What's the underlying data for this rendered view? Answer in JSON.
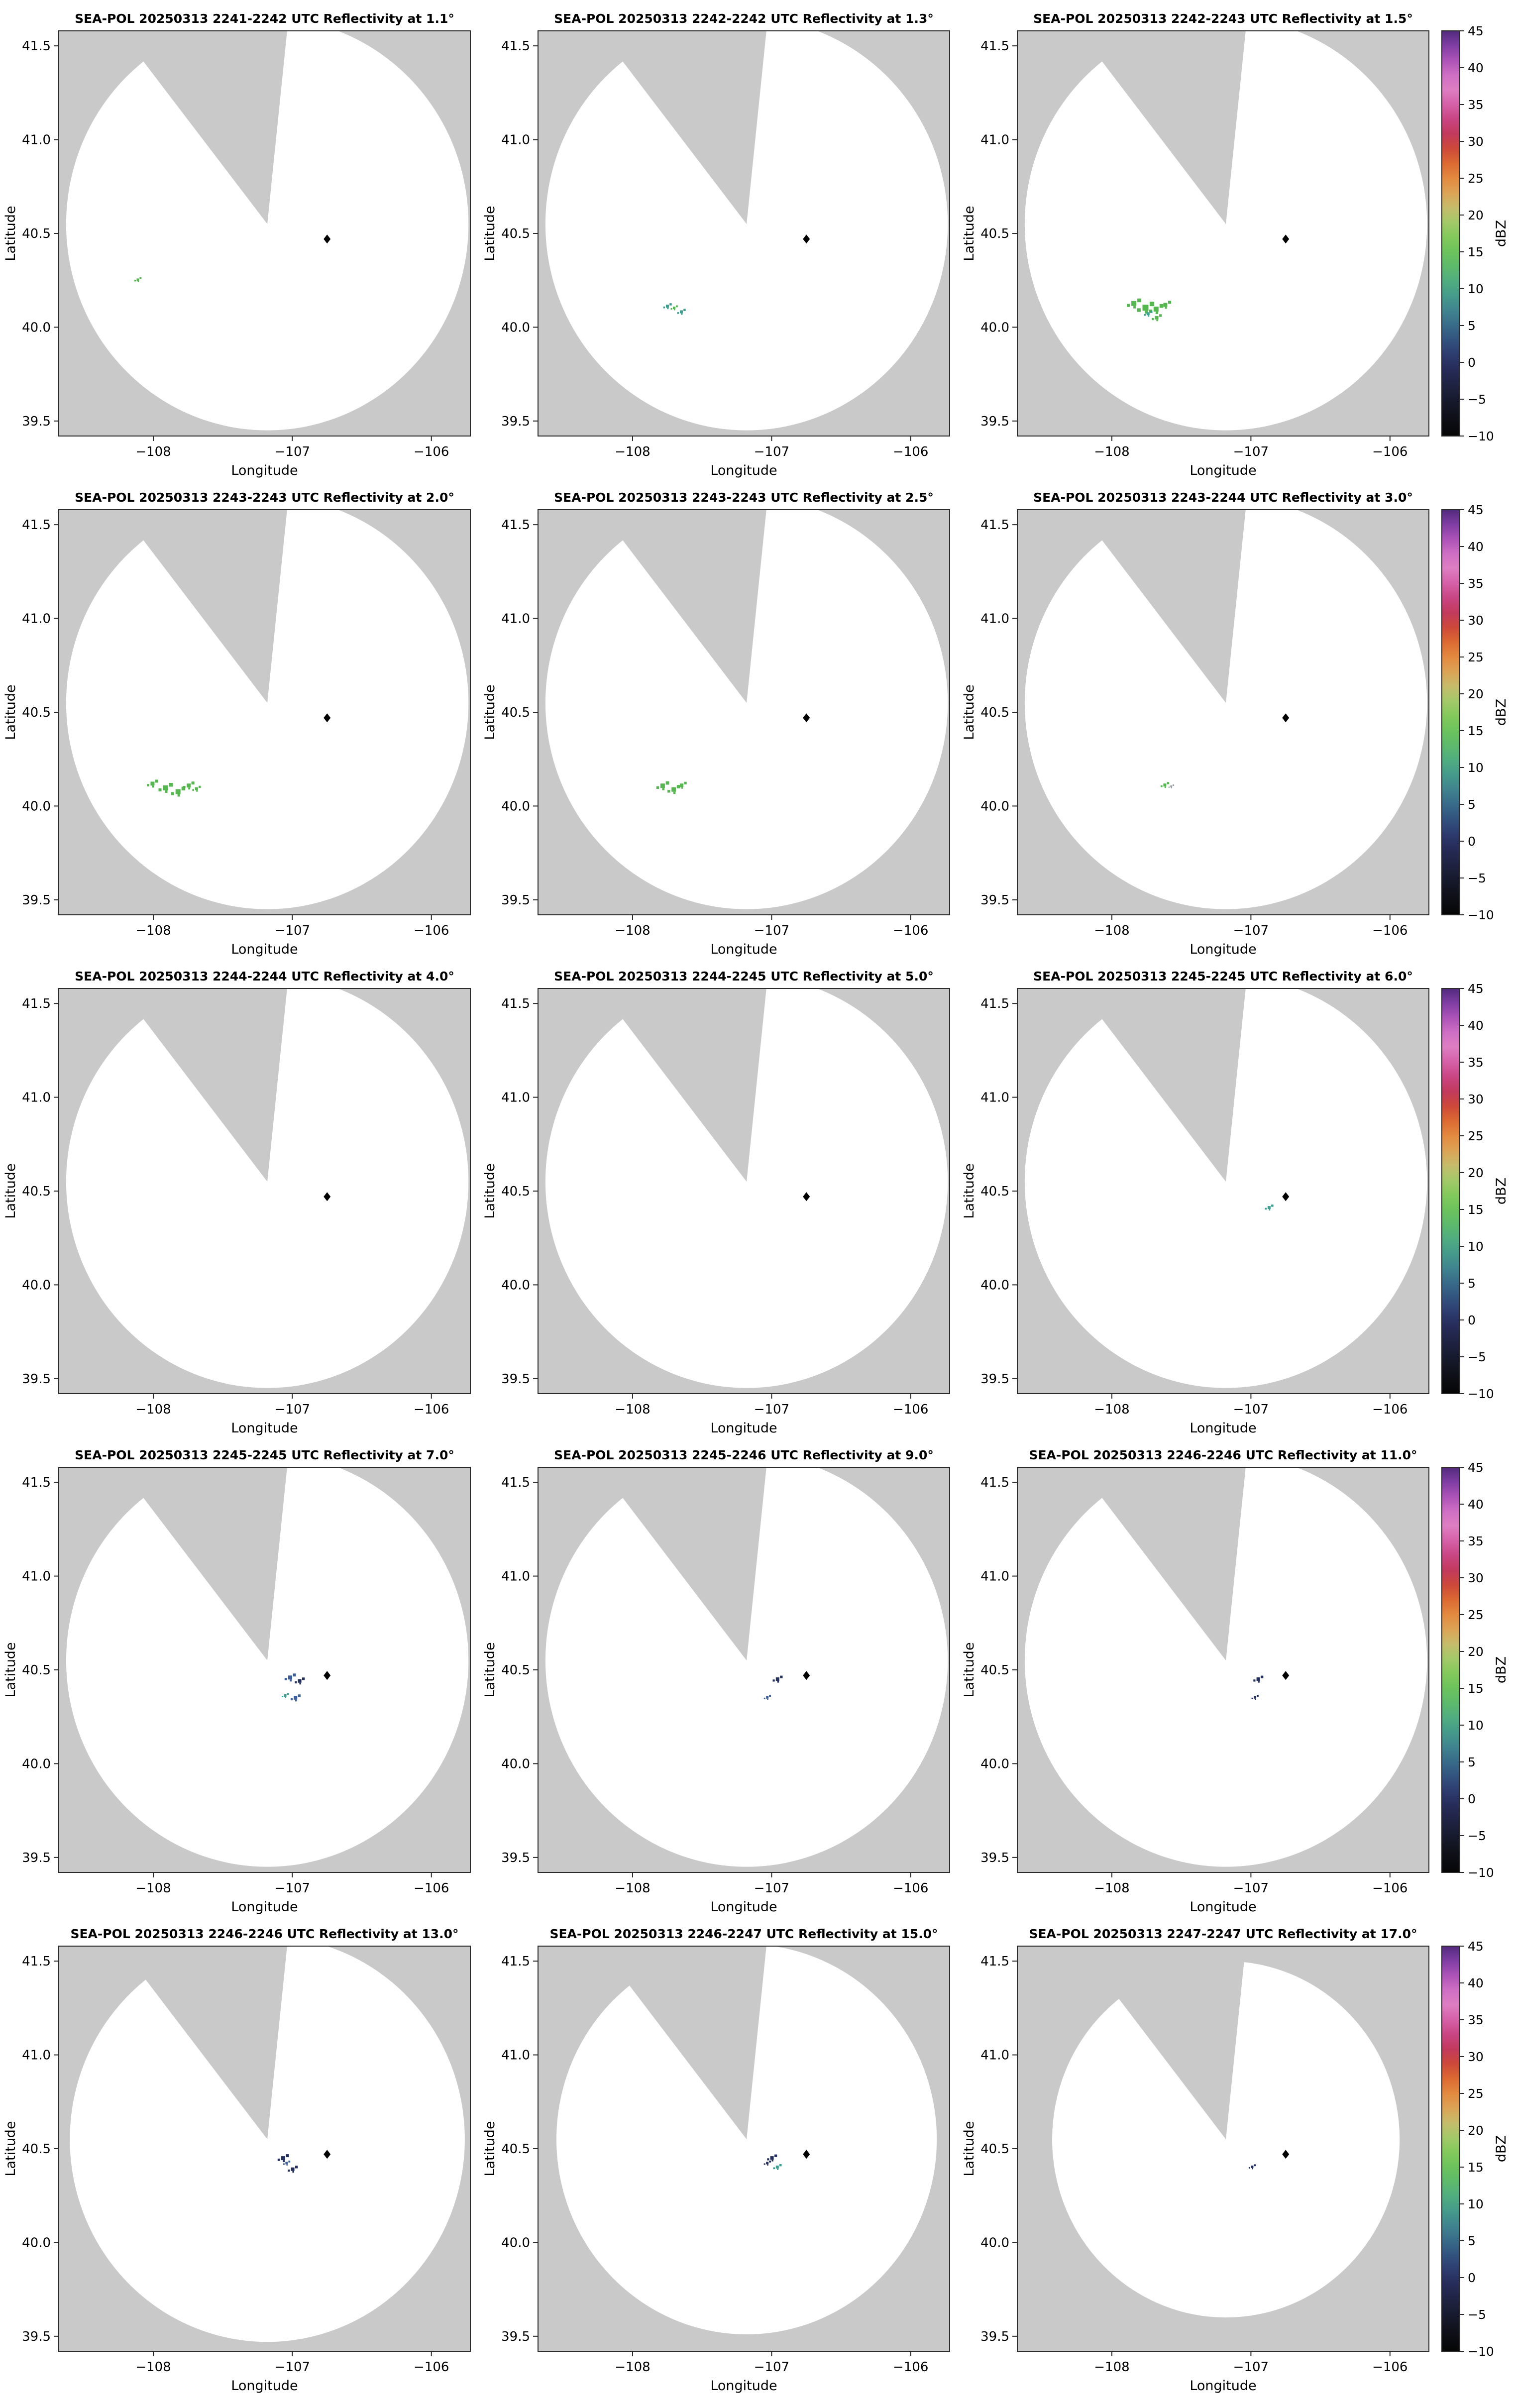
{
  "chart_data": {
    "type": "heatmap",
    "description": "Grid of 15 radar PPI reflectivity maps (5 rows x 3 columns) with one colorbar per row",
    "rows": 5,
    "cols": 3,
    "axes": {
      "xlabel": "Longitude",
      "ylabel": "Latitude",
      "xlim": [
        -108.68,
        -105.72
      ],
      "ylim": [
        39.42,
        41.58
      ],
      "xticks": [
        {
          "v": -108,
          "label": "−108"
        },
        {
          "v": -107,
          "label": "−107"
        },
        {
          "v": -106,
          "label": "−106"
        }
      ],
      "yticks": [
        {
          "v": 39.5,
          "label": "39.5"
        },
        {
          "v": 40.0,
          "label": "40.0"
        },
        {
          "v": 40.5,
          "label": "40.5"
        },
        {
          "v": 41.0,
          "label": "41.0"
        },
        {
          "v": 41.5,
          "label": "41.5"
        }
      ]
    },
    "map": {
      "background_color": "#c9c9c9",
      "coverage_color": "#ffffff",
      "border_color": "#2b2b2b",
      "center": {
        "lon": -107.18,
        "lat": 40.55
      },
      "radar_marker": {
        "lon": -106.75,
        "lat": 40.47,
        "color": "#000000"
      },
      "wedge": {
        "start_az_deg": -38,
        "mid_az_deg": -16,
        "end_az_deg": 6
      }
    },
    "colorbar": {
      "label": "dBZ",
      "min": -10,
      "max": 45,
      "ticks": [
        {
          "v": 45,
          "label": "45"
        },
        {
          "v": 40,
          "label": "40"
        },
        {
          "v": 35,
          "label": "35"
        },
        {
          "v": 30,
          "label": "30"
        },
        {
          "v": 25,
          "label": "25"
        },
        {
          "v": 20,
          "label": "20"
        },
        {
          "v": 15,
          "label": "15"
        },
        {
          "v": 10,
          "label": "10"
        },
        {
          "v": 5,
          "label": "5"
        },
        {
          "v": 0,
          "label": "0"
        },
        {
          "v": -5,
          "label": "−5"
        },
        {
          "v": -10,
          "label": "−10"
        }
      ],
      "stops": [
        [
          -10,
          "#060606"
        ],
        [
          -7,
          "#10121c"
        ],
        [
          -4,
          "#1b1f38"
        ],
        [
          -1,
          "#262b58"
        ],
        [
          1,
          "#2d3c6e"
        ],
        [
          3,
          "#32527e"
        ],
        [
          5,
          "#386b89"
        ],
        [
          7,
          "#3f838e"
        ],
        [
          9,
          "#459a8b"
        ],
        [
          11,
          "#50ad80"
        ],
        [
          13,
          "#5dba6c"
        ],
        [
          15,
          "#6cc35c"
        ],
        [
          17,
          "#83c95c"
        ],
        [
          19,
          "#a3c968"
        ],
        [
          21,
          "#c6bc6b"
        ],
        [
          23,
          "#dca355"
        ],
        [
          25,
          "#e38a40"
        ],
        [
          27,
          "#dc6a32"
        ],
        [
          29,
          "#cd4939"
        ],
        [
          31,
          "#c23a5c"
        ],
        [
          33,
          "#c94583"
        ],
        [
          35,
          "#d560a7"
        ],
        [
          37,
          "#de7ec2"
        ],
        [
          39,
          "#cf6fc4"
        ],
        [
          41,
          "#ad53b8"
        ],
        [
          43,
          "#7f3da3"
        ],
        [
          45,
          "#512a7d"
        ]
      ]
    },
    "echo_palette": {
      "green": "#55b84f",
      "teal": "#3aa08f",
      "blue": "#3c5f9e",
      "navy": "#232f5e",
      "gray": "#9aa0a6"
    },
    "panels": [
      {
        "title": "SEA-POL 20250313 2241-2242 UTC Reflectivity at 1.1°",
        "elevation_deg": 1.1,
        "radius_lat_deg": 1.1,
        "echoes": [
          [
            -108.12,
            40.26,
            "green",
            5
          ]
        ]
      },
      {
        "title": "SEA-POL 20250313 2242-2242 UTC Reflectivity at 1.3°",
        "elevation_deg": 1.3,
        "radius_lat_deg": 1.1,
        "echoes": [
          [
            -107.76,
            40.12,
            "teal",
            6
          ],
          [
            -107.66,
            40.09,
            "teal",
            6
          ],
          [
            -107.71,
            40.11,
            "green",
            5
          ]
        ]
      },
      {
        "title": "SEA-POL 20250313 2242-2243 UTC Reflectivity at 1.5°",
        "elevation_deg": 1.5,
        "radius_lat_deg": 1.1,
        "echoes": [
          [
            -107.86,
            40.14,
            "green",
            10
          ],
          [
            -107.78,
            40.12,
            "green",
            12
          ],
          [
            -107.7,
            40.11,
            "green",
            10
          ],
          [
            -107.63,
            40.13,
            "green",
            8
          ],
          [
            -107.69,
            40.06,
            "green",
            7
          ],
          [
            -107.75,
            40.08,
            "teal",
            6
          ]
        ]
      },
      {
        "title": "SEA-POL 20250313 2243-2243 UTC Reflectivity at 2.0°",
        "elevation_deg": 2.0,
        "radius_lat_deg": 1.1,
        "echoes": [
          [
            -108.02,
            40.13,
            "green",
            8
          ],
          [
            -107.93,
            40.11,
            "green",
            10
          ],
          [
            -107.84,
            40.09,
            "green",
            10
          ],
          [
            -107.76,
            40.12,
            "green",
            8
          ],
          [
            -107.7,
            40.1,
            "green",
            6
          ]
        ]
      },
      {
        "title": "SEA-POL 20250313 2243-2243 UTC Reflectivity at 2.5°",
        "elevation_deg": 2.5,
        "radius_lat_deg": 1.1,
        "echoes": [
          [
            -107.8,
            40.12,
            "green",
            9
          ],
          [
            -107.72,
            40.1,
            "green",
            9
          ],
          [
            -107.66,
            40.12,
            "green",
            7
          ]
        ]
      },
      {
        "title": "SEA-POL 20250313 2243-2244 UTC Reflectivity at 3.0°",
        "elevation_deg": 3.0,
        "radius_lat_deg": 1.1,
        "echoes": [
          [
            -107.63,
            40.12,
            "green",
            6
          ],
          [
            -107.58,
            40.11,
            "gray",
            4
          ]
        ]
      },
      {
        "title": "SEA-POL 20250313 2244-2244 UTC Reflectivity at 4.0°",
        "elevation_deg": 4.0,
        "radius_lat_deg": 1.1,
        "echoes": []
      },
      {
        "title": "SEA-POL 20250313 2244-2245 UTC Reflectivity at 5.0°",
        "elevation_deg": 5.0,
        "radius_lat_deg": 1.1,
        "echoes": []
      },
      {
        "title": "SEA-POL 20250313 2245-2245 UTC Reflectivity at 6.0°",
        "elevation_deg": 6.0,
        "radius_lat_deg": 1.1,
        "echoes": [
          [
            -106.88,
            40.42,
            "teal",
            6
          ]
        ]
      },
      {
        "title": "SEA-POL 20250313 2245-2245 UTC Reflectivity at 7.0°",
        "elevation_deg": 7.0,
        "radius_lat_deg": 1.1,
        "echoes": [
          [
            -107.03,
            40.47,
            "blue",
            8
          ],
          [
            -106.96,
            40.45,
            "navy",
            7
          ],
          [
            -106.99,
            40.36,
            "blue",
            7
          ],
          [
            -107.06,
            40.37,
            "teal",
            5
          ]
        ]
      },
      {
        "title": "SEA-POL 20250313 2245-2246 UTC Reflectivity at 9.0°",
        "elevation_deg": 9.0,
        "radius_lat_deg": 1.1,
        "echoes": [
          [
            -106.97,
            40.46,
            "navy",
            7
          ],
          [
            -107.04,
            40.36,
            "blue",
            5
          ]
        ]
      },
      {
        "title": "SEA-POL 20250313 2246-2246 UTC Reflectivity at 11.0°",
        "elevation_deg": 11.0,
        "radius_lat_deg": 1.1,
        "echoes": [
          [
            -106.96,
            40.46,
            "navy",
            7
          ],
          [
            -106.98,
            40.36,
            "navy",
            5
          ]
        ]
      },
      {
        "title": "SEA-POL 20250313 2246-2246 UTC Reflectivity at 13.0°",
        "elevation_deg": 13.0,
        "radius_lat_deg": 1.08,
        "echoes": [
          [
            -107.08,
            40.46,
            "navy",
            8
          ],
          [
            -107.01,
            40.4,
            "navy",
            7
          ],
          [
            -107.05,
            40.43,
            "blue",
            5
          ]
        ]
      },
      {
        "title": "SEA-POL 20250313 2246-2247 UTC Reflectivity at 15.0°",
        "elevation_deg": 15.0,
        "radius_lat_deg": 1.04,
        "echoes": [
          [
            -107.01,
            40.46,
            "navy",
            7
          ],
          [
            -106.97,
            40.41,
            "teal",
            6
          ],
          [
            -107.04,
            40.43,
            "navy",
            5
          ]
        ]
      },
      {
        "title": "SEA-POL 20250313 2247-2247 UTC Reflectivity at 17.0°",
        "elevation_deg": 17.0,
        "radius_lat_deg": 0.95,
        "echoes": [
          [
            -107.0,
            40.41,
            "navy",
            5
          ]
        ]
      }
    ]
  }
}
